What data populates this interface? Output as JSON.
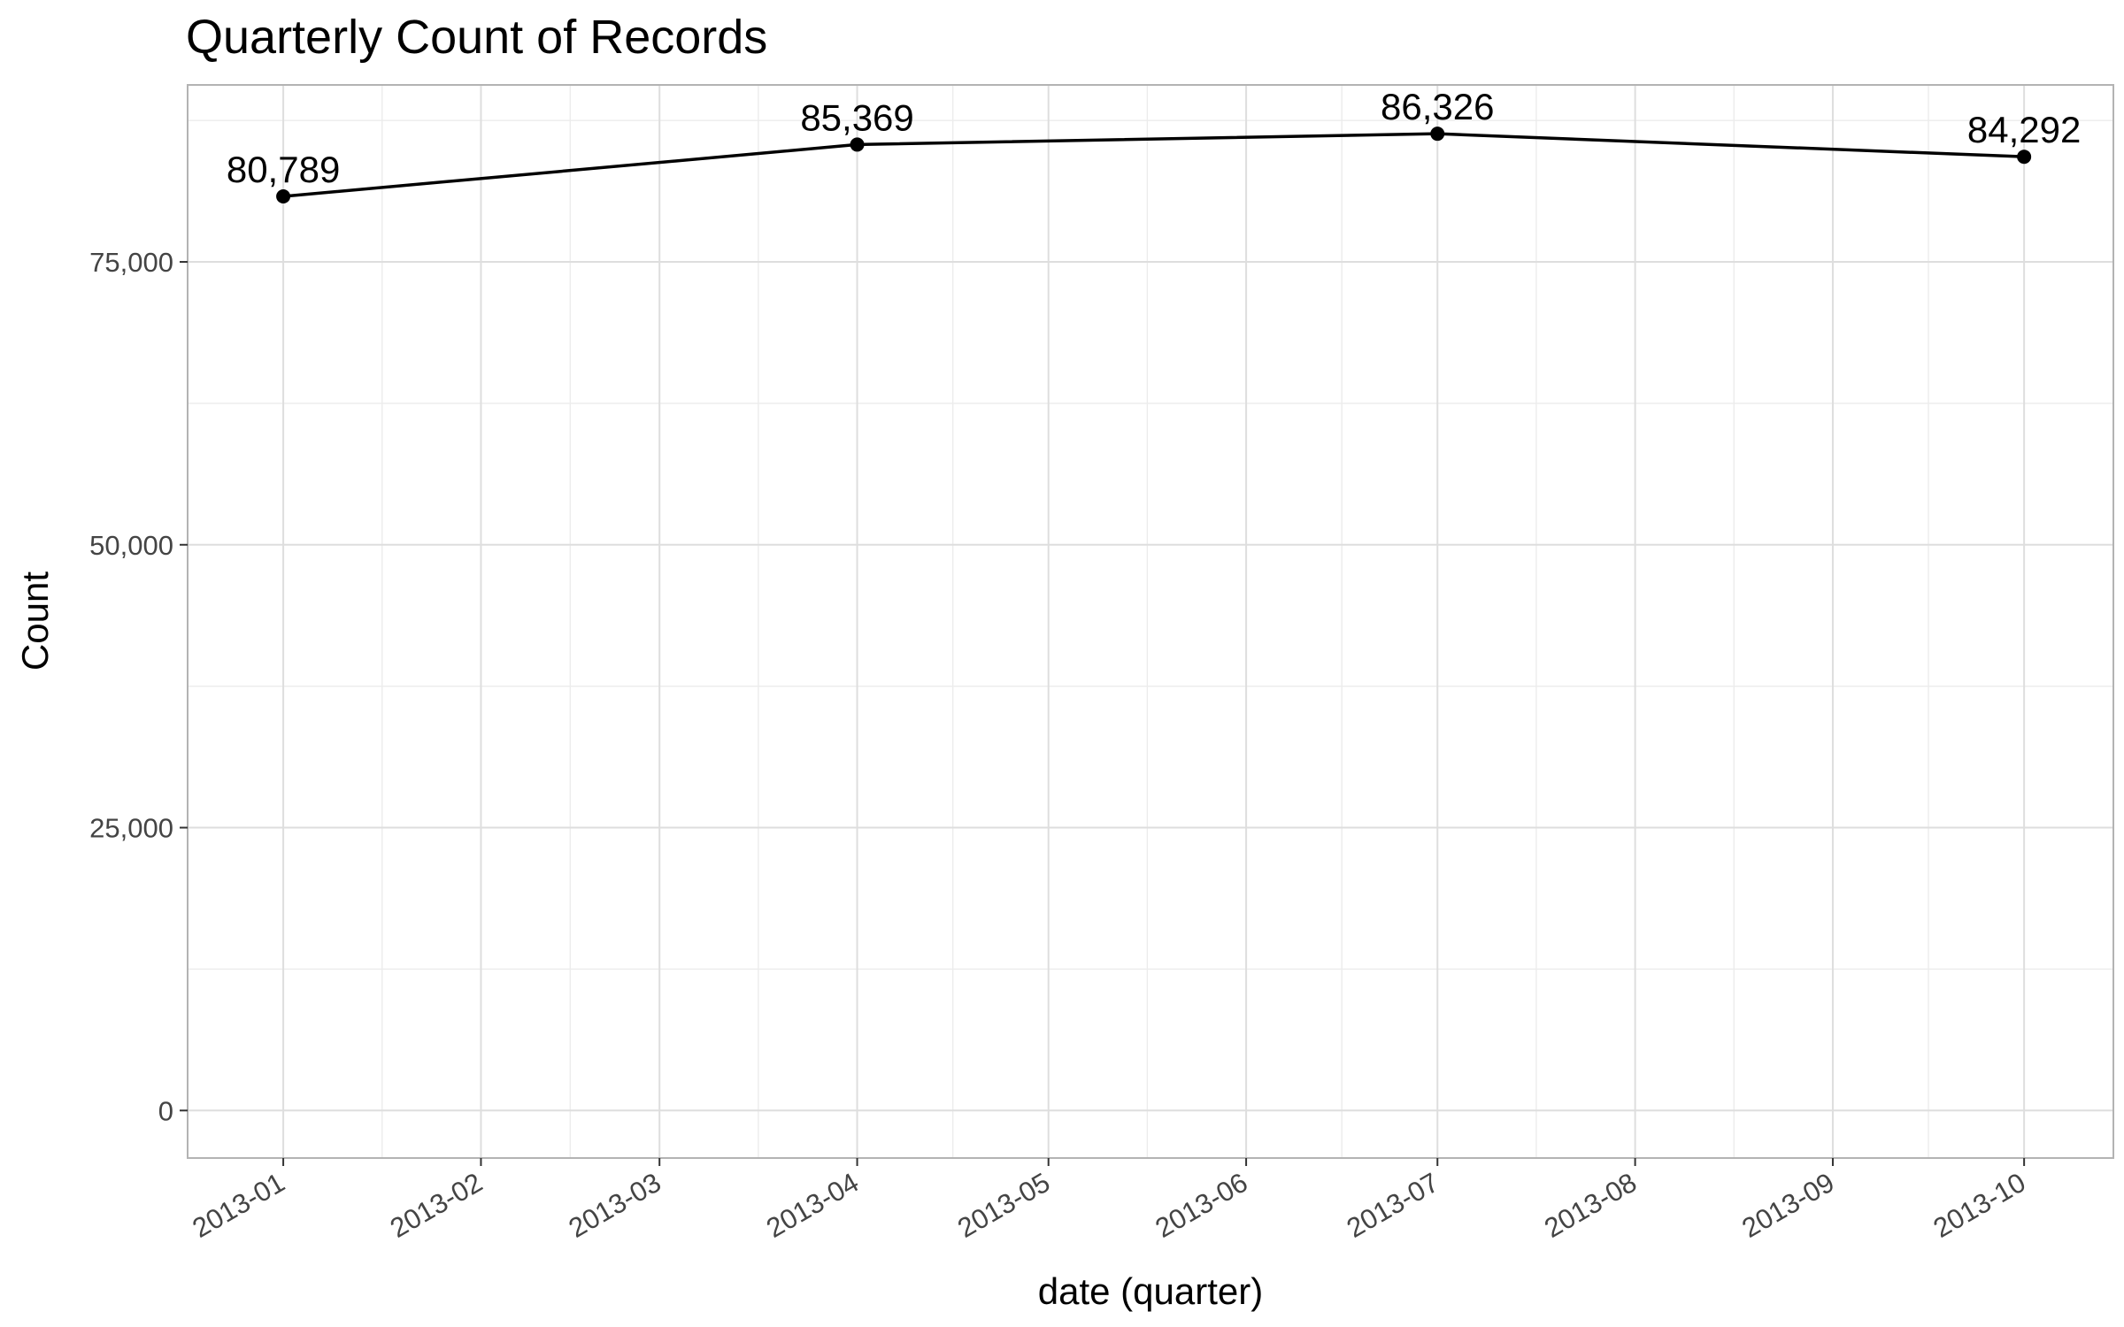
{
  "chart_data": {
    "type": "line",
    "title": "Quarterly Count of Records",
    "xlabel": "date (quarter)",
    "ylabel": "Count",
    "x": [
      "2013-01-01",
      "2013-04-01",
      "2013-07-01",
      "2013-10-01"
    ],
    "series": [
      {
        "values": [
          80789,
          85369,
          86326,
          84292
        ],
        "labels": [
          "80,789",
          "85,369",
          "86,326",
          "84,292"
        ],
        "color": "#000000"
      }
    ],
    "x_ticks": [
      "2013-01",
      "2013-02",
      "2013-03",
      "2013-04",
      "2013-05",
      "2013-06",
      "2013-07",
      "2013-08",
      "2013-09",
      "2013-10"
    ],
    "y_ticks": [
      {
        "value": 0,
        "label": "0"
      },
      {
        "value": 25000,
        "label": "25,000"
      },
      {
        "value": 50000,
        "label": "50,000"
      },
      {
        "value": 75000,
        "label": "75,000"
      }
    ],
    "ylim": [
      -4200,
      90640
    ],
    "xlim": [
      "2012-12-17",
      "2013-10-15"
    ],
    "grid": true,
    "legend": "none"
  }
}
